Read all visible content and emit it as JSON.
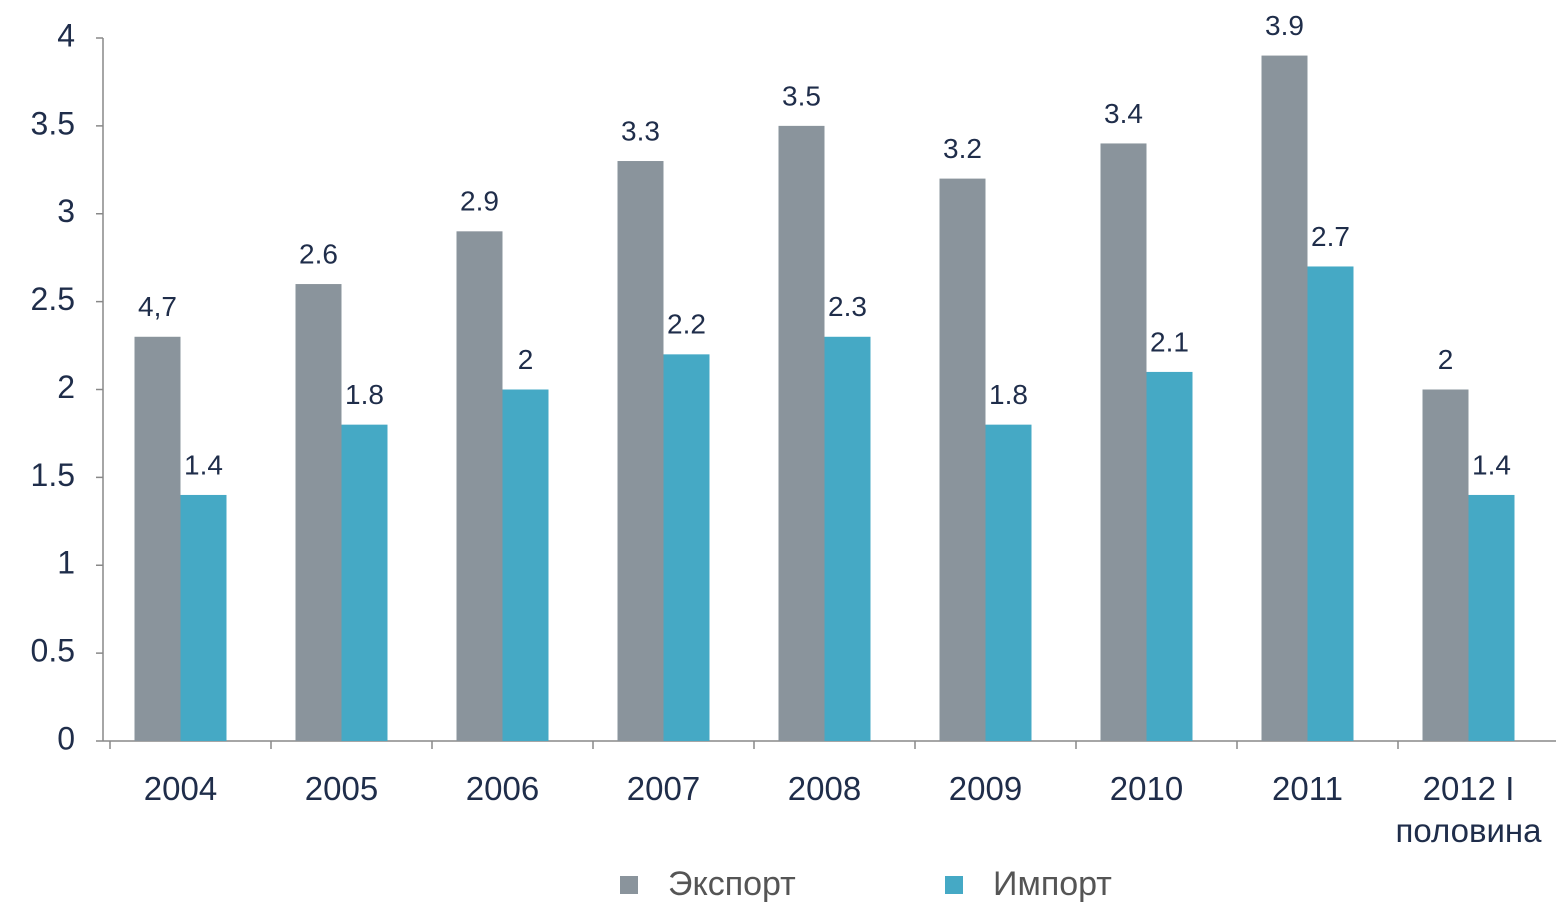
{
  "chart_data": {
    "type": "bar",
    "categories": [
      "2004",
      "2005",
      "2006",
      "2007",
      "2008",
      "2009",
      "2010",
      "2011",
      "2012 I половина"
    ],
    "series": [
      {
        "name": "Экспорт",
        "color": "#8a949c",
        "values": [
          2.3,
          2.6,
          2.9,
          3.3,
          3.5,
          3.2,
          3.4,
          3.9,
          2
        ]
      },
      {
        "name": "Импорт",
        "color": "#45a9c5",
        "values": [
          1.4,
          1.8,
          2,
          2.2,
          2.3,
          1.8,
          2.1,
          2.7,
          1.4
        ]
      }
    ],
    "annotations": [
      {
        "text": "4,7"
      }
    ],
    "ylim": [
      0,
      4
    ],
    "yticks": [
      0,
      0.5,
      1,
      1.5,
      2,
      2.5,
      3,
      3.5,
      4
    ],
    "grid": false
  }
}
